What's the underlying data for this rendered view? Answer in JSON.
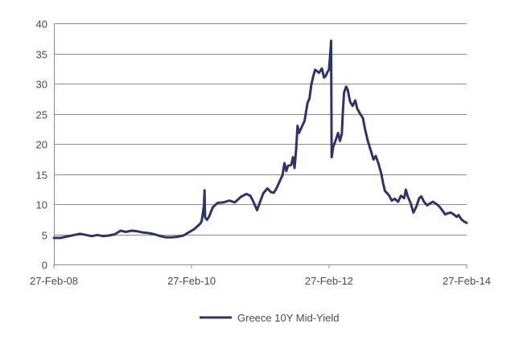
{
  "chart_data": {
    "type": "line",
    "title": "",
    "xlabel": "",
    "ylabel": "",
    "ylim": [
      0,
      40
    ],
    "y_ticks": [
      "0",
      "5",
      "10",
      "15",
      "20",
      "25",
      "30",
      "35",
      "40"
    ],
    "x_tick_labels": [
      "27-Feb-08",
      "27-Feb-10",
      "27-Feb-12",
      "27-Feb-14"
    ],
    "x_tick_dates": [
      "2008-02-27",
      "2010-02-27",
      "2012-02-27",
      "2014-02-27"
    ],
    "xlim": [
      "2008-02-27",
      "2014-02-27"
    ],
    "grid": "horizontal",
    "legend_position": "bottom-center",
    "series": [
      {
        "name": "Greece 10Y Mid-Yield",
        "color": "#2e3466",
        "points": [
          [
            "2008-02-27",
            4.4
          ],
          [
            "2008-04-01",
            4.4
          ],
          [
            "2008-05-01",
            4.6
          ],
          [
            "2008-06-15",
            4.9
          ],
          [
            "2008-07-15",
            5.1
          ],
          [
            "2008-08-15",
            4.9
          ],
          [
            "2008-09-15",
            4.7
          ],
          [
            "2008-10-15",
            4.9
          ],
          [
            "2008-11-15",
            4.7
          ],
          [
            "2008-12-15",
            4.8
          ],
          [
            "2009-01-15",
            5.0
          ],
          [
            "2009-02-15",
            5.6
          ],
          [
            "2009-03-15",
            5.4
          ],
          [
            "2009-04-15",
            5.6
          ],
          [
            "2009-05-15",
            5.5
          ],
          [
            "2009-06-15",
            5.3
          ],
          [
            "2009-07-15",
            5.2
          ],
          [
            "2009-08-15",
            5.0
          ],
          [
            "2009-09-15",
            4.7
          ],
          [
            "2009-10-15",
            4.5
          ],
          [
            "2009-11-15",
            4.5
          ],
          [
            "2009-12-15",
            4.6
          ],
          [
            "2010-01-15",
            4.8
          ],
          [
            "2010-02-27",
            5.6
          ],
          [
            "2010-03-15",
            5.9
          ],
          [
            "2010-04-01",
            6.4
          ],
          [
            "2010-04-15",
            6.8
          ],
          [
            "2010-04-22",
            7.2
          ],
          [
            "2010-04-28",
            8.5
          ],
          [
            "2010-05-04",
            9.8
          ],
          [
            "2010-05-07",
            12.3
          ],
          [
            "2010-05-10",
            7.8
          ],
          [
            "2010-05-20",
            7.4
          ],
          [
            "2010-06-01",
            8.0
          ],
          [
            "2010-06-20",
            9.5
          ],
          [
            "2010-07-15",
            10.2
          ],
          [
            "2010-08-15",
            10.3
          ],
          [
            "2010-09-15",
            10.6
          ],
          [
            "2010-10-15",
            10.3
          ],
          [
            "2010-11-15",
            11.2
          ],
          [
            "2010-12-15",
            11.7
          ],
          [
            "2011-01-05",
            11.4
          ],
          [
            "2011-01-20",
            10.5
          ],
          [
            "2011-02-10",
            9.0
          ],
          [
            "2011-02-25",
            10.3
          ],
          [
            "2011-03-15",
            11.8
          ],
          [
            "2011-04-05",
            12.6
          ],
          [
            "2011-04-25",
            12.0
          ],
          [
            "2011-05-10",
            11.9
          ],
          [
            "2011-05-25",
            12.7
          ],
          [
            "2011-06-10",
            13.8
          ],
          [
            "2011-06-25",
            14.8
          ],
          [
            "2011-07-05",
            16.8
          ],
          [
            "2011-07-15",
            15.5
          ],
          [
            "2011-07-25",
            16.4
          ],
          [
            "2011-08-10",
            16.5
          ],
          [
            "2011-08-20",
            17.8
          ],
          [
            "2011-08-28",
            16.0
          ],
          [
            "2011-09-05",
            19.0
          ],
          [
            "2011-09-13",
            23.0
          ],
          [
            "2011-09-20",
            21.8
          ],
          [
            "2011-10-05",
            22.8
          ],
          [
            "2011-10-20",
            23.8
          ],
          [
            "2011-11-05",
            26.8
          ],
          [
            "2011-11-15",
            27.5
          ],
          [
            "2011-11-25",
            29.8
          ],
          [
            "2011-12-05",
            31.2
          ],
          [
            "2011-12-15",
            32.3
          ],
          [
            "2012-01-05",
            31.8
          ],
          [
            "2012-01-20",
            32.5
          ],
          [
            "2012-02-01",
            31.0
          ],
          [
            "2012-02-10",
            31.3
          ],
          [
            "2012-02-20",
            32.0
          ],
          [
            "2012-02-27",
            32.3
          ],
          [
            "2012-03-05",
            35.2
          ],
          [
            "2012-03-09",
            37.1
          ],
          [
            "2012-03-12",
            17.8
          ],
          [
            "2012-03-20",
            19.5
          ],
          [
            "2012-04-01",
            20.5
          ],
          [
            "2012-04-15",
            21.8
          ],
          [
            "2012-04-25",
            20.5
          ],
          [
            "2012-05-05",
            21.6
          ],
          [
            "2012-05-10",
            25.0
          ],
          [
            "2012-05-17",
            28.5
          ],
          [
            "2012-05-28",
            29.5
          ],
          [
            "2012-06-05",
            29.0
          ],
          [
            "2012-06-18",
            27.0
          ],
          [
            "2012-07-01",
            26.3
          ],
          [
            "2012-07-15",
            27.2
          ],
          [
            "2012-07-25",
            25.9
          ],
          [
            "2012-08-10",
            25.0
          ],
          [
            "2012-08-25",
            24.3
          ],
          [
            "2012-09-05",
            22.5
          ],
          [
            "2012-09-20",
            20.5
          ],
          [
            "2012-10-05",
            19.0
          ],
          [
            "2012-10-20",
            17.4
          ],
          [
            "2012-11-01",
            18.0
          ],
          [
            "2012-11-15",
            16.8
          ],
          [
            "2012-12-01",
            15.0
          ],
          [
            "2012-12-10",
            13.5
          ],
          [
            "2012-12-20",
            12.2
          ],
          [
            "2013-01-10",
            11.5
          ],
          [
            "2013-01-25",
            10.6
          ],
          [
            "2013-02-10",
            10.9
          ],
          [
            "2013-02-28",
            10.4
          ],
          [
            "2013-03-15",
            11.4
          ],
          [
            "2013-04-01",
            11.0
          ],
          [
            "2013-04-10",
            12.4
          ],
          [
            "2013-04-20",
            11.3
          ],
          [
            "2013-05-05",
            10.2
          ],
          [
            "2013-05-20",
            8.6
          ],
          [
            "2013-06-05",
            9.6
          ],
          [
            "2013-06-20",
            11.0
          ],
          [
            "2013-07-01",
            11.3
          ],
          [
            "2013-07-15",
            10.4
          ],
          [
            "2013-08-01",
            9.8
          ],
          [
            "2013-08-15",
            10.1
          ],
          [
            "2013-09-01",
            10.4
          ],
          [
            "2013-09-20",
            10.0
          ],
          [
            "2013-10-05",
            9.6
          ],
          [
            "2013-10-20",
            9.0
          ],
          [
            "2013-11-05",
            8.3
          ],
          [
            "2013-11-20",
            8.5
          ],
          [
            "2013-12-05",
            8.6
          ],
          [
            "2013-12-20",
            8.3
          ],
          [
            "2014-01-05",
            7.9
          ],
          [
            "2014-01-15",
            8.2
          ],
          [
            "2014-01-25",
            7.7
          ],
          [
            "2014-02-05",
            7.3
          ],
          [
            "2014-02-15",
            7.1
          ],
          [
            "2014-02-27",
            6.9
          ]
        ]
      }
    ]
  }
}
